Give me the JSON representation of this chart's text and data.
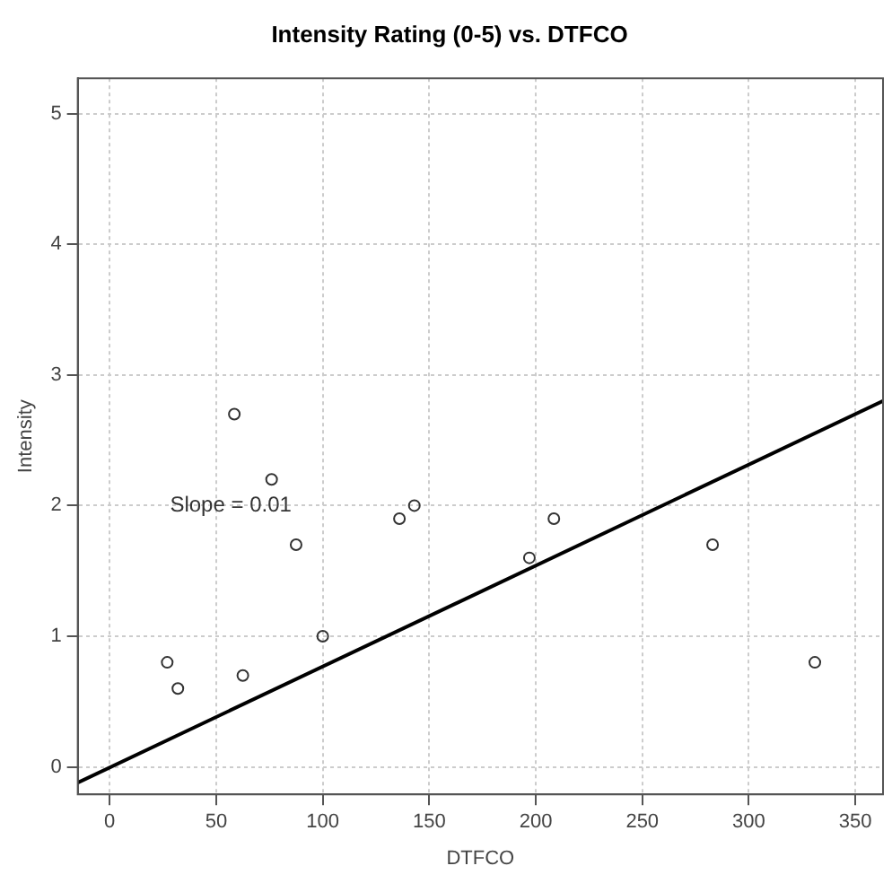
{
  "chart_data": {
    "type": "scatter",
    "title": "Intensity Rating (0-5) vs. DTFCO",
    "xlabel": "DTFCO",
    "ylabel": "Intensity",
    "series": [
      {
        "type": "scatter",
        "marker": "circle",
        "color": "#333333",
        "x": [
          27,
          32,
          58.5,
          62.5,
          76,
          87.5,
          100,
          136,
          143,
          197,
          208.5,
          283,
          331
        ],
        "values": [
          0.8,
          0.6,
          2.7,
          0.7,
          2.2,
          1.7,
          1.0,
          1.9,
          2.0,
          1.6,
          1.9,
          1.7,
          0.8
        ]
      },
      {
        "type": "line",
        "marker": "none",
        "color": "#000000",
        "x": [
          -15,
          363
        ],
        "values": [
          -0.12,
          2.8
        ]
      }
    ],
    "annotations": [
      "Slope = 0.01"
    ],
    "xlim": [
      -15,
      363
    ],
    "xticks": [
      0,
      50,
      100,
      150,
      200,
      250,
      300,
      350
    ],
    "ylim": [
      -0.21,
      5.27
    ],
    "yticks": [
      0,
      1,
      2,
      3,
      4,
      5
    ],
    "grid": true,
    "legend": false
  }
}
